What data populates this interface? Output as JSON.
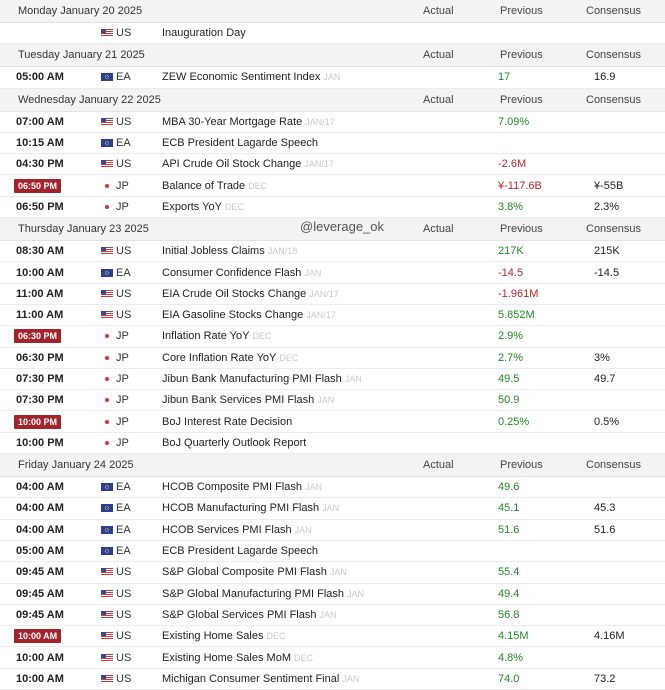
{
  "columns": {
    "actual": "Actual",
    "previous": "Previous",
    "consensus": "Consensus"
  },
  "watermark": "@leverage_ok",
  "days": [
    {
      "label": "Monday January 20 2025",
      "events": [
        {
          "time": "",
          "highlight": false,
          "flag": "us",
          "ccy": "US",
          "event": "Inauguration Day",
          "ref": "",
          "previous": "",
          "prev_color": "neu",
          "consensus": ""
        }
      ]
    },
    {
      "label": "Tuesday January 21 2025",
      "events": [
        {
          "time": "05:00 AM",
          "highlight": false,
          "flag": "ea",
          "ccy": "EA",
          "event": "ZEW Economic Sentiment Index",
          "ref": "JAN",
          "previous": "17",
          "prev_color": "pos",
          "consensus": "16.9"
        }
      ]
    },
    {
      "label": "Wednesday January 22 2025",
      "events": [
        {
          "time": "07:00 AM",
          "highlight": false,
          "flag": "us",
          "ccy": "US",
          "event": "MBA 30-Year Mortgage Rate",
          "ref": "JAN/17",
          "previous": "7.09%",
          "prev_color": "pos",
          "consensus": ""
        },
        {
          "time": "10:15 AM",
          "highlight": false,
          "flag": "ea",
          "ccy": "EA",
          "event": "ECB President Lagarde Speech",
          "ref": "",
          "previous": "",
          "prev_color": "neu",
          "consensus": ""
        },
        {
          "time": "04:30 PM",
          "highlight": false,
          "flag": "us",
          "ccy": "US",
          "event": "API Crude Oil Stock Change",
          "ref": "JAN/17",
          "previous": "-2.6M",
          "prev_color": "neg",
          "consensus": ""
        },
        {
          "time": "06:50 PM",
          "highlight": true,
          "flag": "jp",
          "ccy": "JP",
          "event": "Balance of Trade",
          "ref": "DEC",
          "previous": "¥-117.6B",
          "prev_color": "neg",
          "consensus": "¥-55B"
        },
        {
          "time": "06:50 PM",
          "highlight": false,
          "flag": "jp",
          "ccy": "JP",
          "event": "Exports YoY",
          "ref": "DEC",
          "previous": "3.8%",
          "prev_color": "pos",
          "consensus": "2.3%"
        }
      ]
    },
    {
      "label": "Thursday January 23 2025",
      "events": [
        {
          "time": "08:30 AM",
          "highlight": false,
          "flag": "us",
          "ccy": "US",
          "event": "Initial Jobless Claims",
          "ref": "JAN/18",
          "previous": "217K",
          "prev_color": "pos",
          "consensus": "215K"
        },
        {
          "time": "10:00 AM",
          "highlight": false,
          "flag": "ea",
          "ccy": "EA",
          "event": "Consumer Confidence Flash",
          "ref": "JAN",
          "previous": "-14.5",
          "prev_color": "neg",
          "consensus": "-14.5"
        },
        {
          "time": "11:00 AM",
          "highlight": false,
          "flag": "us",
          "ccy": "US",
          "event": "EIA Crude Oil Stocks Change",
          "ref": "JAN/17",
          "previous": "-1.961M",
          "prev_color": "neg",
          "consensus": ""
        },
        {
          "time": "11:00 AM",
          "highlight": false,
          "flag": "us",
          "ccy": "US",
          "event": "EIA Gasoline Stocks Change",
          "ref": "JAN/17",
          "previous": "5.852M",
          "prev_color": "pos",
          "consensus": ""
        },
        {
          "time": "06:30 PM",
          "highlight": true,
          "flag": "jp",
          "ccy": "JP",
          "event": "Inflation Rate YoY",
          "ref": "DEC",
          "previous": "2.9%",
          "prev_color": "pos",
          "consensus": ""
        },
        {
          "time": "06:30 PM",
          "highlight": false,
          "flag": "jp",
          "ccy": "JP",
          "event": "Core Inflation Rate YoY",
          "ref": "DEC",
          "previous": "2.7%",
          "prev_color": "pos",
          "consensus": "3%"
        },
        {
          "time": "07:30 PM",
          "highlight": false,
          "flag": "jp",
          "ccy": "JP",
          "event": "Jibun Bank Manufacturing PMI Flash",
          "ref": "JAN",
          "previous": "49.5",
          "prev_color": "pos",
          "consensus": "49.7"
        },
        {
          "time": "07:30 PM",
          "highlight": false,
          "flag": "jp",
          "ccy": "JP",
          "event": "Jibun Bank Services PMI Flash",
          "ref": "JAN",
          "previous": "50.9",
          "prev_color": "pos",
          "consensus": ""
        },
        {
          "time": "10:00 PM",
          "highlight": true,
          "flag": "jp",
          "ccy": "JP",
          "event": "BoJ Interest Rate Decision",
          "ref": "",
          "previous": "0.25%",
          "prev_color": "pos",
          "consensus": "0.5%"
        },
        {
          "time": "10:00 PM",
          "highlight": false,
          "flag": "jp",
          "ccy": "JP",
          "event": "BoJ Quarterly Outlook Report",
          "ref": "",
          "previous": "",
          "prev_color": "neu",
          "consensus": ""
        }
      ]
    },
    {
      "label": "Friday January 24 2025",
      "events": [
        {
          "time": "04:00 AM",
          "highlight": false,
          "flag": "ea",
          "ccy": "EA",
          "event": "HCOB Composite PMI Flash",
          "ref": "JAN",
          "previous": "49.6",
          "prev_color": "pos",
          "consensus": ""
        },
        {
          "time": "04:00 AM",
          "highlight": false,
          "flag": "ea",
          "ccy": "EA",
          "event": "HCOB Manufacturing PMI Flash",
          "ref": "JAN",
          "previous": "45.1",
          "prev_color": "pos",
          "consensus": "45.3"
        },
        {
          "time": "04:00 AM",
          "highlight": false,
          "flag": "ea",
          "ccy": "EA",
          "event": "HCOB Services PMI Flash",
          "ref": "JAN",
          "previous": "51.6",
          "prev_color": "pos",
          "consensus": "51.6"
        },
        {
          "time": "05:00 AM",
          "highlight": false,
          "flag": "ea",
          "ccy": "EA",
          "event": "ECB President Lagarde Speech",
          "ref": "",
          "previous": "",
          "prev_color": "neu",
          "consensus": ""
        },
        {
          "time": "09:45 AM",
          "highlight": false,
          "flag": "us",
          "ccy": "US",
          "event": "S&P Global Composite PMI Flash",
          "ref": "JAN",
          "previous": "55.4",
          "prev_color": "pos",
          "consensus": ""
        },
        {
          "time": "09:45 AM",
          "highlight": false,
          "flag": "us",
          "ccy": "US",
          "event": "S&P Global Manufacturing PMI Flash",
          "ref": "JAN",
          "previous": "49.4",
          "prev_color": "pos",
          "consensus": ""
        },
        {
          "time": "09:45 AM",
          "highlight": false,
          "flag": "us",
          "ccy": "US",
          "event": "S&P Global Services PMI Flash",
          "ref": "JAN",
          "previous": "56.8",
          "prev_color": "pos",
          "consensus": ""
        },
        {
          "time": "10:00 AM",
          "highlight": true,
          "flag": "us",
          "ccy": "US",
          "event": "Existing Home Sales",
          "ref": "DEC",
          "previous": "4.15M",
          "prev_color": "pos",
          "consensus": "4.16M"
        },
        {
          "time": "10:00 AM",
          "highlight": false,
          "flag": "us",
          "ccy": "US",
          "event": "Existing Home Sales MoM",
          "ref": "DEC",
          "previous": "4.8%",
          "prev_color": "pos",
          "consensus": ""
        },
        {
          "time": "10:00 AM",
          "highlight": false,
          "flag": "us",
          "ccy": "US",
          "event": "Michigan Consumer Sentiment Final",
          "ref": "JAN",
          "previous": "74.0",
          "prev_color": "pos",
          "consensus": "73.2"
        }
      ]
    }
  ]
}
